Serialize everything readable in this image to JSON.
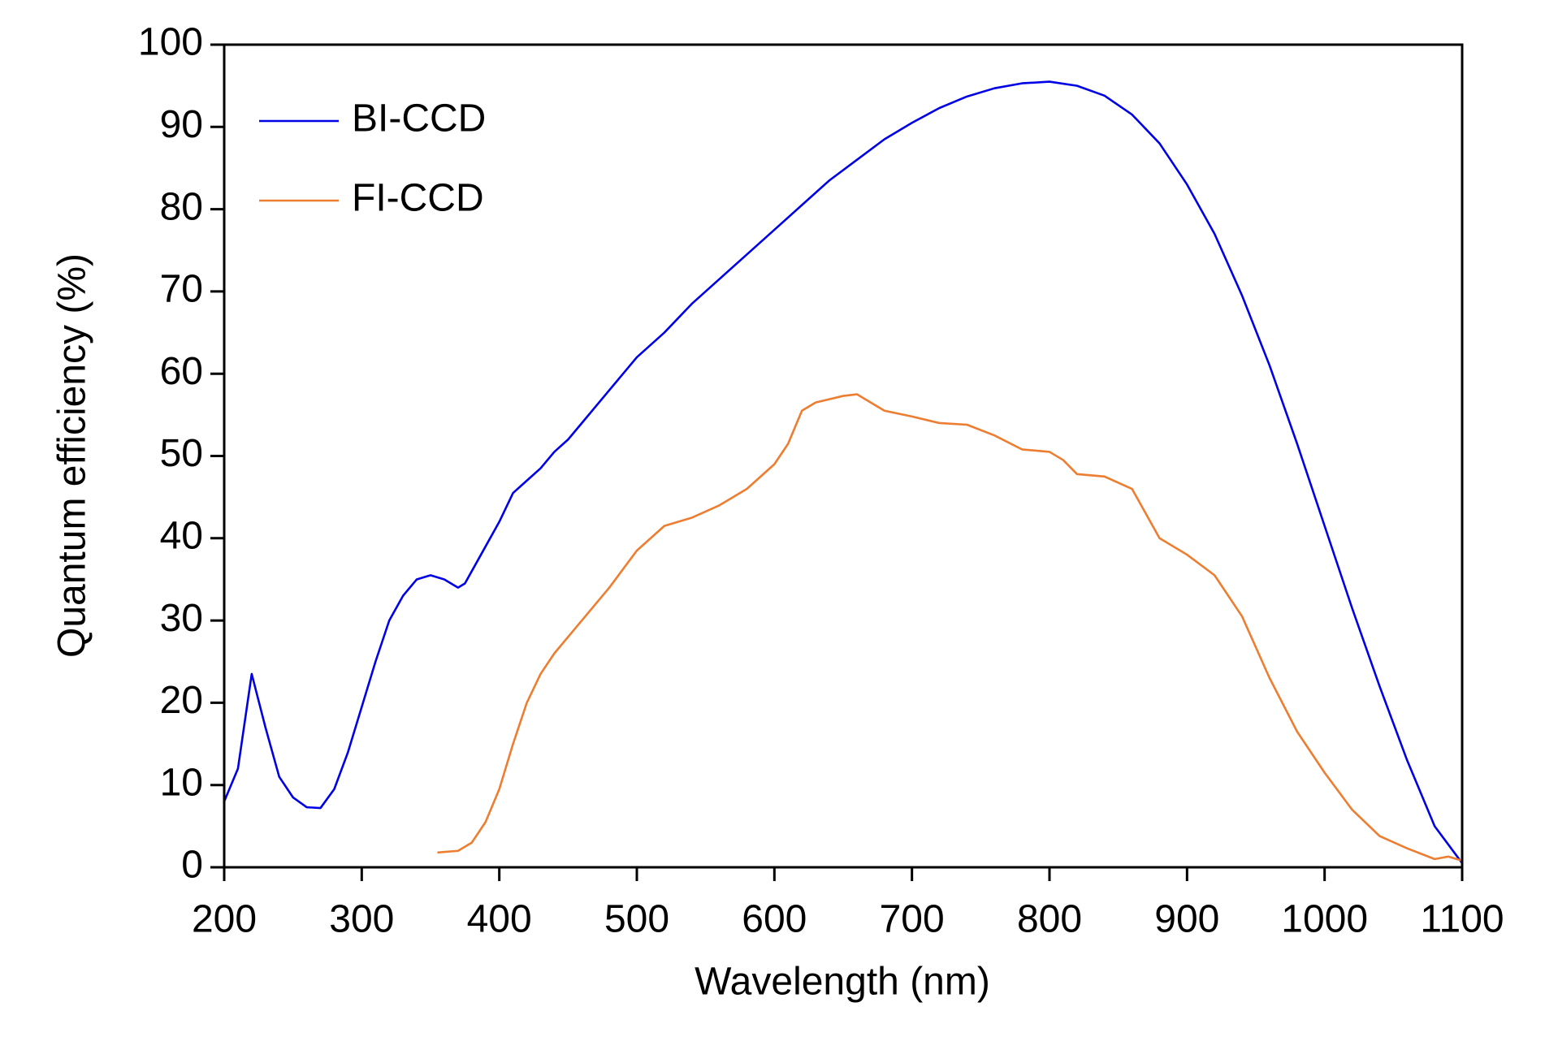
{
  "chart_data": {
    "type": "line",
    "x_label": "Wavelength (nm)",
    "y_label": "Quantum efficiency (%)",
    "xlim": [
      200,
      1100
    ],
    "xticks": [
      200,
      300,
      400,
      500,
      600,
      700,
      800,
      900,
      1000,
      1100
    ],
    "ylim": [
      0,
      100
    ],
    "yticks": [
      0,
      10,
      20,
      30,
      40,
      50,
      60,
      70,
      80,
      90,
      100
    ],
    "legend": "upper left",
    "series": [
      {
        "name": "BI-CCD",
        "color": "#0000e6",
        "x": [
          200,
          210,
          220,
          230,
          240,
          250,
          260,
          270,
          280,
          290,
          300,
          310,
          320,
          330,
          340,
          350,
          360,
          370,
          375,
          380,
          390,
          400,
          410,
          420,
          430,
          440,
          450,
          460,
          480,
          500,
          520,
          540,
          560,
          580,
          600,
          620,
          640,
          660,
          680,
          700,
          720,
          740,
          760,
          780,
          800,
          820,
          840,
          860,
          880,
          900,
          920,
          940,
          960,
          980,
          1000,
          1020,
          1040,
          1060,
          1080,
          1100
        ],
        "values": [
          8,
          12,
          23.5,
          17,
          11,
          8.5,
          7.3,
          7.2,
          9.5,
          14,
          19.5,
          25,
          30,
          33,
          35,
          35.5,
          35,
          34,
          34.5,
          36,
          39,
          42,
          45.5,
          47,
          48.5,
          50.5,
          52,
          54,
          58,
          62,
          65,
          68.5,
          71.5,
          74.5,
          77.5,
          80.5,
          83.5,
          86,
          88.5,
          90.5,
          92.3,
          93.7,
          94.7,
          95.3,
          95.5,
          95,
          93.8,
          91.5,
          88,
          83,
          77,
          69.5,
          61,
          51.5,
          41.5,
          31.5,
          22,
          13,
          5,
          0.5
        ]
      },
      {
        "name": "FI-CCD",
        "color": "#ed7d31",
        "x": [
          355,
          370,
          380,
          390,
          400,
          410,
          420,
          430,
          440,
          460,
          480,
          500,
          520,
          540,
          560,
          580,
          600,
          610,
          620,
          630,
          650,
          660,
          670,
          680,
          700,
          720,
          740,
          760,
          780,
          800,
          810,
          820,
          840,
          860,
          870,
          880,
          900,
          920,
          940,
          960,
          980,
          1000,
          1020,
          1040,
          1060,
          1080,
          1090,
          1100
        ],
        "values": [
          1.8,
          2,
          3,
          5.5,
          9.5,
          15,
          20,
          23.5,
          26,
          30,
          34,
          38.5,
          41.5,
          42.5,
          44,
          46,
          49,
          51.5,
          55.5,
          56.5,
          57.3,
          57.5,
          56.5,
          55.5,
          54.8,
          54,
          53.8,
          52.5,
          50.8,
          50.5,
          49.5,
          47.8,
          47.5,
          46,
          43,
          40,
          38,
          35.5,
          30.5,
          23,
          16.5,
          11.5,
          7,
          3.8,
          2.3,
          1,
          1.3,
          0.8
        ]
      }
    ]
  }
}
